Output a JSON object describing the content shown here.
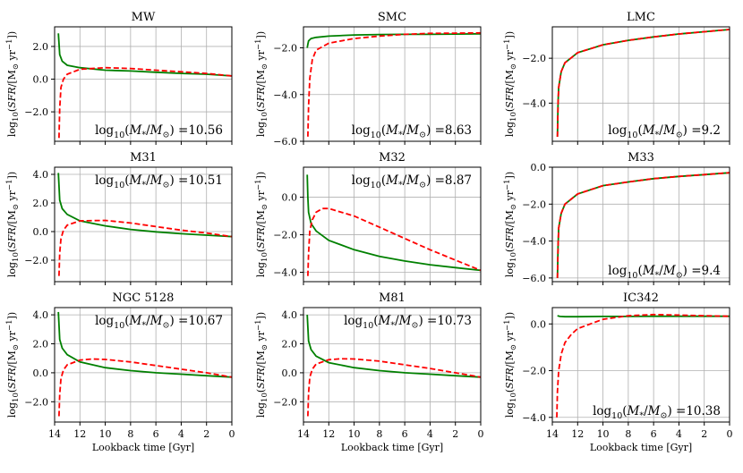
{
  "figure": {
    "xlabel": "Lookback time [Gyr]",
    "ylabel": "log10(SFR/[M⊙ yr⁻¹])",
    "xticks": [
      14,
      12,
      10,
      8,
      6,
      4,
      2,
      0
    ]
  },
  "chart_data": [
    {
      "type": "line",
      "title": "MW",
      "annotation": "log10(M*/M⊙) =10.56",
      "xlim": [
        14,
        0
      ],
      "ylim": [
        -3.8,
        3.2
      ],
      "yticks": [
        2.0,
        0.0,
        -2.0
      ],
      "series": [
        {
          "name": "green",
          "color": "#008000",
          "style": "solid",
          "x": [
            13.7,
            13.6,
            13.4,
            13.0,
            12.0,
            10.0,
            8.0,
            6.0,
            4.0,
            2.0,
            0.0
          ],
          "y": [
            2.8,
            1.5,
            1.1,
            0.85,
            0.7,
            0.55,
            0.5,
            0.42,
            0.35,
            0.3,
            0.2
          ]
        },
        {
          "name": "red",
          "color": "#ff0000",
          "style": "dashed",
          "x": [
            13.65,
            13.6,
            13.5,
            13.3,
            13.0,
            12.0,
            10.0,
            8.0,
            6.0,
            4.0,
            2.0,
            0.0
          ],
          "y": [
            -3.6,
            -1.8,
            -0.5,
            0.0,
            0.3,
            0.6,
            0.7,
            0.65,
            0.55,
            0.45,
            0.35,
            0.2
          ]
        }
      ]
    },
    {
      "type": "line",
      "title": "SMC",
      "annotation": "log10(M*/M⊙) =8.63",
      "xlim": [
        14,
        0
      ],
      "ylim": [
        -6.0,
        -1.1
      ],
      "yticks": [
        -2.0,
        -4.0,
        -6.0
      ],
      "series": [
        {
          "name": "green",
          "color": "#008000",
          "style": "solid",
          "x": [
            13.7,
            13.65,
            13.6,
            13.4,
            13.0,
            12.0,
            10.0,
            8.0,
            6.0,
            4.0,
            2.0,
            0.0
          ],
          "y": [
            -2.0,
            -1.85,
            -1.7,
            -1.6,
            -1.55,
            -1.5,
            -1.45,
            -1.43,
            -1.42,
            -1.42,
            -1.41,
            -1.4
          ]
        },
        {
          "name": "red",
          "color": "#ff0000",
          "style": "dashed",
          "x": [
            13.65,
            13.6,
            13.5,
            13.3,
            13.0,
            12.0,
            10.0,
            8.0,
            6.0,
            4.0,
            2.0,
            0.0
          ],
          "y": [
            -5.8,
            -4.5,
            -3.3,
            -2.5,
            -2.1,
            -1.8,
            -1.6,
            -1.5,
            -1.42,
            -1.38,
            -1.37,
            -1.36
          ]
        }
      ]
    },
    {
      "type": "line",
      "title": "LMC",
      "annotation": "log10(M*/M⊙) =9.2",
      "xlim": [
        14,
        0
      ],
      "ylim": [
        -5.7,
        -0.6
      ],
      "yticks": [
        -2.0,
        -4.0
      ],
      "series": [
        {
          "name": "green",
          "color": "#008000",
          "style": "solid",
          "x": [
            13.6,
            13.55,
            13.5,
            13.3,
            13.0,
            12.0,
            10.0,
            8.0,
            6.0,
            4.0,
            2.0,
            0.0
          ],
          "y": [
            -5.5,
            -4.0,
            -3.3,
            -2.6,
            -2.2,
            -1.75,
            -1.4,
            -1.2,
            -1.05,
            -0.92,
            -0.82,
            -0.72
          ]
        },
        {
          "name": "red",
          "color": "#ff0000",
          "style": "dashed",
          "x": [
            13.6,
            13.55,
            13.5,
            13.3,
            13.0,
            12.0,
            10.0,
            8.0,
            6.0,
            4.0,
            2.0,
            0.0
          ],
          "y": [
            -5.5,
            -4.0,
            -3.3,
            -2.6,
            -2.2,
            -1.75,
            -1.4,
            -1.2,
            -1.05,
            -0.92,
            -0.82,
            -0.72
          ]
        }
      ]
    },
    {
      "type": "line",
      "title": "M31",
      "annotation": "log10(M*/M⊙) =10.51",
      "xlim": [
        14,
        0
      ],
      "ylim": [
        -3.5,
        4.5
      ],
      "yticks": [
        4.0,
        2.0,
        0.0,
        -2.0
      ],
      "series": [
        {
          "name": "green",
          "color": "#008000",
          "style": "solid",
          "x": [
            13.7,
            13.6,
            13.4,
            13.0,
            12.0,
            10.0,
            8.0,
            6.0,
            4.0,
            2.0,
            0.0
          ],
          "y": [
            4.1,
            2.2,
            1.6,
            1.2,
            0.75,
            0.4,
            0.15,
            -0.02,
            -0.15,
            -0.25,
            -0.35
          ]
        },
        {
          "name": "red",
          "color": "#ff0000",
          "style": "dashed",
          "x": [
            13.65,
            13.6,
            13.5,
            13.3,
            13.0,
            12.0,
            10.0,
            8.0,
            6.0,
            4.0,
            2.0,
            0.0
          ],
          "y": [
            -3.1,
            -1.5,
            -0.5,
            0.1,
            0.45,
            0.75,
            0.78,
            0.6,
            0.35,
            0.1,
            -0.1,
            -0.35
          ]
        }
      ]
    },
    {
      "type": "line",
      "title": "M32",
      "annotation": "log10(M*/M⊙) =8.87",
      "xlim": [
        14,
        0
      ],
      "ylim": [
        -4.5,
        1.6
      ],
      "yticks": [
        0.0,
        -2.0,
        -4.0
      ],
      "series": [
        {
          "name": "green",
          "color": "#008000",
          "style": "solid",
          "x": [
            13.7,
            13.65,
            13.6,
            13.4,
            13.0,
            12.0,
            10.0,
            8.0,
            6.0,
            4.0,
            2.0,
            0.0
          ],
          "y": [
            1.2,
            0.0,
            -0.8,
            -1.4,
            -1.8,
            -2.3,
            -2.8,
            -3.15,
            -3.4,
            -3.6,
            -3.75,
            -3.9
          ]
        },
        {
          "name": "red",
          "color": "#ff0000",
          "style": "dashed",
          "x": [
            13.65,
            13.6,
            13.5,
            13.3,
            13.0,
            12.5,
            12.0,
            10.0,
            8.0,
            6.0,
            4.0,
            2.0,
            0.0
          ],
          "y": [
            -4.2,
            -3.0,
            -1.8,
            -1.2,
            -0.8,
            -0.6,
            -0.6,
            -1.0,
            -1.6,
            -2.2,
            -2.8,
            -3.35,
            -3.9
          ]
        }
      ]
    },
    {
      "type": "line",
      "title": "M33",
      "annotation": "log10(M*/M⊙) =9.4",
      "xlim": [
        14,
        0
      ],
      "ylim": [
        -6.2,
        0.0
      ],
      "yticks": [
        0.0,
        -2.0,
        -4.0,
        -6.0
      ],
      "series": [
        {
          "name": "green",
          "color": "#008000",
          "style": "solid",
          "x": [
            13.6,
            13.55,
            13.5,
            13.3,
            13.0,
            12.0,
            10.0,
            8.0,
            6.0,
            4.0,
            2.0,
            0.0
          ],
          "y": [
            -6.0,
            -4.3,
            -3.3,
            -2.5,
            -2.0,
            -1.45,
            -1.0,
            -0.8,
            -0.62,
            -0.5,
            -0.4,
            -0.3
          ]
        },
        {
          "name": "red",
          "color": "#ff0000",
          "style": "dashed",
          "x": [
            13.6,
            13.55,
            13.5,
            13.3,
            13.0,
            12.0,
            10.0,
            8.0,
            6.0,
            4.0,
            2.0,
            0.0
          ],
          "y": [
            -6.0,
            -4.3,
            -3.3,
            -2.5,
            -2.0,
            -1.45,
            -1.0,
            -0.8,
            -0.62,
            -0.5,
            -0.4,
            -0.3
          ]
        }
      ]
    },
    {
      "type": "line",
      "title": "NGC 5128",
      "annotation": "log10(M*/M⊙) =10.67",
      "xlim": [
        14,
        0
      ],
      "ylim": [
        -3.4,
        4.5
      ],
      "yticks": [
        4.0,
        2.0,
        0.0,
        -2.0
      ],
      "series": [
        {
          "name": "green",
          "color": "#008000",
          "style": "solid",
          "x": [
            13.7,
            13.6,
            13.4,
            13.0,
            12.0,
            10.0,
            8.0,
            6.0,
            4.0,
            2.0,
            0.0
          ],
          "y": [
            4.2,
            2.3,
            1.7,
            1.25,
            0.75,
            0.35,
            0.15,
            0.0,
            -0.1,
            -0.2,
            -0.3
          ]
        },
        {
          "name": "red",
          "color": "#ff0000",
          "style": "dashed",
          "x": [
            13.65,
            13.6,
            13.5,
            13.3,
            13.0,
            12.0,
            11.0,
            10.0,
            8.0,
            6.0,
            4.0,
            2.0,
            0.0
          ],
          "y": [
            -3.0,
            -1.5,
            -0.4,
            0.2,
            0.55,
            0.88,
            0.95,
            0.92,
            0.75,
            0.5,
            0.25,
            0.0,
            -0.3
          ]
        }
      ]
    },
    {
      "type": "line",
      "title": "M81",
      "annotation": "log10(M*/M⊙) =10.73",
      "xlim": [
        14,
        0
      ],
      "ylim": [
        -3.4,
        4.5
      ],
      "yticks": [
        4.0,
        2.0,
        0.0,
        -2.0
      ],
      "series": [
        {
          "name": "green",
          "color": "#008000",
          "style": "solid",
          "x": [
            13.7,
            13.6,
            13.4,
            13.0,
            12.0,
            10.0,
            8.0,
            6.0,
            4.0,
            2.0,
            0.0
          ],
          "y": [
            4.0,
            2.2,
            1.6,
            1.15,
            0.7,
            0.35,
            0.15,
            0.0,
            -0.1,
            -0.2,
            -0.3
          ]
        },
        {
          "name": "red",
          "color": "#ff0000",
          "style": "dashed",
          "x": [
            13.65,
            13.6,
            13.5,
            13.3,
            13.0,
            12.0,
            11.0,
            10.0,
            8.0,
            6.0,
            4.0,
            2.0,
            0.0
          ],
          "y": [
            -3.0,
            -1.4,
            -0.3,
            0.25,
            0.6,
            0.9,
            0.97,
            0.95,
            0.8,
            0.55,
            0.3,
            0.0,
            -0.3
          ]
        }
      ]
    },
    {
      "type": "line",
      "title": "IC342",
      "annotation": "log10(M*/M⊙) =10.38",
      "xlim": [
        14,
        0
      ],
      "ylim": [
        -4.2,
        0.7
      ],
      "yticks": [
        0.0,
        -2.0,
        -4.0
      ],
      "series": [
        {
          "name": "green",
          "color": "#008000",
          "style": "solid",
          "x": [
            13.6,
            13.4,
            13.0,
            12.0,
            10.0,
            8.0,
            6.0,
            4.0,
            2.0,
            0.0
          ],
          "y": [
            0.35,
            0.32,
            0.31,
            0.31,
            0.32,
            0.32,
            0.33,
            0.33,
            0.33,
            0.33
          ]
        },
        {
          "name": "red",
          "color": "#ff0000",
          "style": "dashed",
          "x": [
            13.65,
            13.6,
            13.5,
            13.3,
            13.0,
            12.5,
            12.0,
            10.0,
            8.0,
            6.0,
            4.0,
            2.0,
            0.0
          ],
          "y": [
            -4.0,
            -2.9,
            -2.0,
            -1.3,
            -0.8,
            -0.45,
            -0.2,
            0.2,
            0.35,
            0.4,
            0.38,
            0.35,
            0.33
          ]
        }
      ]
    }
  ]
}
